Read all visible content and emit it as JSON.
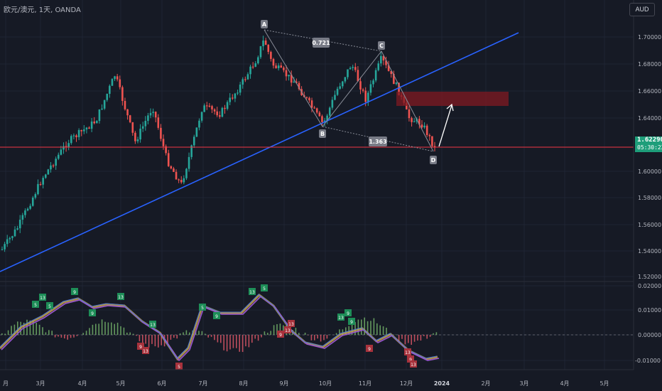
{
  "header": {
    "symbol_label": "欧元/澳元, 1天, OANDA",
    "currency_button": "AUD"
  },
  "price_axis": {
    "labels": [
      "1.70000",
      "1.68000",
      "1.66000",
      "1.64000",
      "1.60000",
      "1.58000",
      "1.56000",
      "1.54000",
      "1.52000"
    ],
    "last_price": "1.62290",
    "countdown": "05:30:22",
    "current_line_color": "#f23645",
    "up_color": "#26a69a",
    "down_color": "#ef5350"
  },
  "oscillator_axis": {
    "labels": [
      "0.02000",
      "0.01000",
      "0.00000",
      "-0.01000"
    ]
  },
  "time_axis": {
    "labels": [
      "月",
      "3月",
      "4月",
      "5月",
      "6月",
      "7月",
      "8月",
      "9月",
      "10月",
      "11月",
      "12月",
      "2024",
      "2月",
      "3月",
      "4月",
      "5月"
    ]
  },
  "pattern": {
    "point_labels": [
      "A",
      "B",
      "C",
      "D"
    ],
    "ratio_ac": "0.721",
    "ratio_bd": "1.363"
  },
  "signal_labels": {
    "buy": [
      "5",
      "13",
      "5",
      "9",
      "13",
      "5",
      "9",
      "13",
      "5",
      "13",
      "9",
      "9",
      "13",
      "9"
    ],
    "sell": [
      "9",
      "13",
      "5",
      "9",
      "13",
      "13",
      "9",
      "13",
      "9",
      "13"
    ]
  },
  "colors": {
    "background": "#161a25",
    "trendline": "#2962ff",
    "resistance_zone": "#801922",
    "text": "#b2b5be"
  }
}
